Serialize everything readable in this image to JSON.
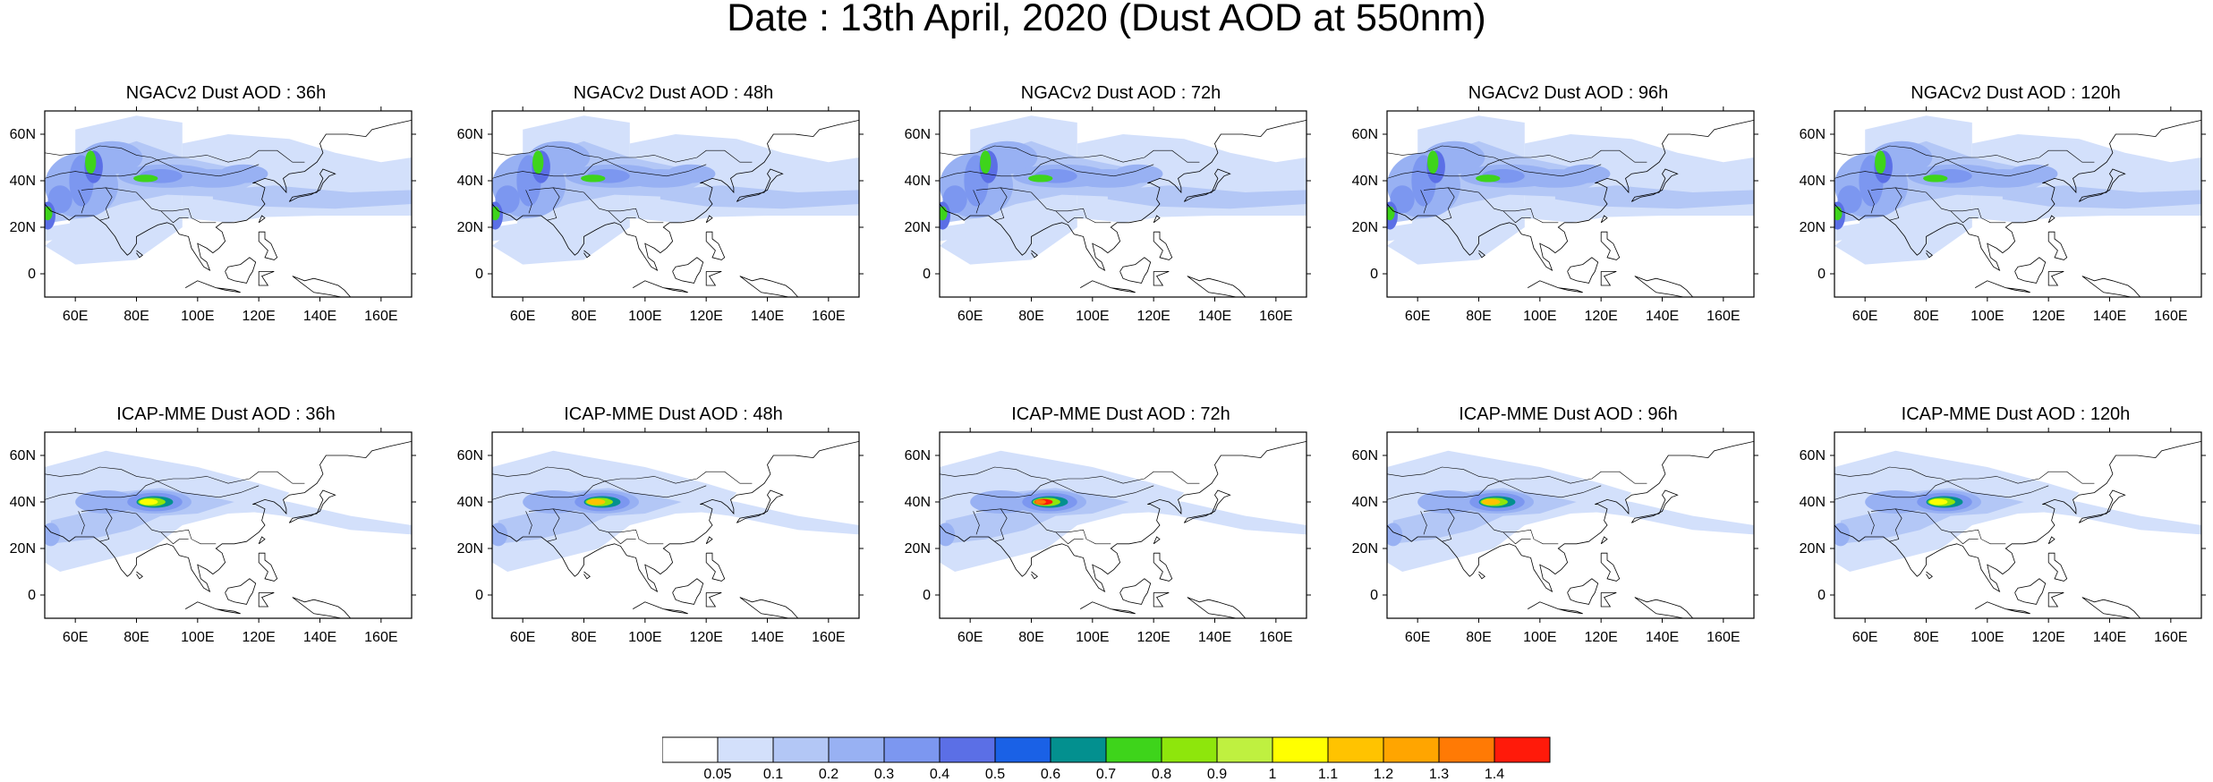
{
  "figure": {
    "title": "Date : 13th April, 2020 (Dust AOD at 550nm)"
  },
  "axes": {
    "lat_ticks": [
      "60N",
      "40N",
      "20N",
      "0"
    ],
    "lon_ticks": [
      "60E",
      "80E",
      "100E",
      "120E",
      "140E",
      "160E"
    ],
    "lat_range": [
      -10,
      70
    ],
    "lon_range": [
      50,
      170
    ]
  },
  "panels": [
    {
      "title": "NGACv2 Dust AOD : 36h",
      "model": "NGACv2",
      "lead": "36h",
      "hotspot_level": 8
    },
    {
      "title": "NGACv2 Dust AOD : 48h",
      "model": "NGACv2",
      "lead": "48h",
      "hotspot_level": 8
    },
    {
      "title": "NGACv2 Dust AOD : 72h",
      "model": "NGACv2",
      "lead": "72h",
      "hotspot_level": 8
    },
    {
      "title": "NGACv2 Dust AOD : 96h",
      "model": "NGACv2",
      "lead": "96h",
      "hotspot_level": 8
    },
    {
      "title": "NGACv2 Dust AOD : 120h",
      "model": "NGACv2",
      "lead": "120h",
      "hotspot_level": 8
    },
    {
      "title": "ICAP-MME Dust AOD : 36h",
      "model": "ICAP-MME",
      "lead": "36h",
      "hotspot_level": 11
    },
    {
      "title": "ICAP-MME Dust AOD : 48h",
      "model": "ICAP-MME",
      "lead": "48h",
      "hotspot_level": 12
    },
    {
      "title": "ICAP-MME Dust AOD : 72h",
      "model": "ICAP-MME",
      "lead": "72h",
      "hotspot_level": 15
    },
    {
      "title": "ICAP-MME Dust AOD : 96h",
      "model": "ICAP-MME",
      "lead": "96h",
      "hotspot_level": 12
    },
    {
      "title": "ICAP-MME Dust AOD : 120h",
      "model": "ICAP-MME",
      "lead": "120h",
      "hotspot_level": 11
    }
  ],
  "colorbar": {
    "labels": [
      "0.05",
      "0.1",
      "0.2",
      "0.3",
      "0.4",
      "0.5",
      "0.6",
      "0.7",
      "0.8",
      "0.9",
      "1",
      "1.1",
      "1.2",
      "1.3",
      "1.4"
    ],
    "colors": [
      "#ffffff",
      "#d3e0fb",
      "#b3c7f6",
      "#98b1f3",
      "#7c97f0",
      "#5b6fe6",
      "#1a61e6",
      "#03908f",
      "#3ed41b",
      "#8ee60c",
      "#bff040",
      "#ffff00",
      "#ffc300",
      "#ffa500",
      "#ff7a05",
      "#ff1a0a"
    ]
  }
}
